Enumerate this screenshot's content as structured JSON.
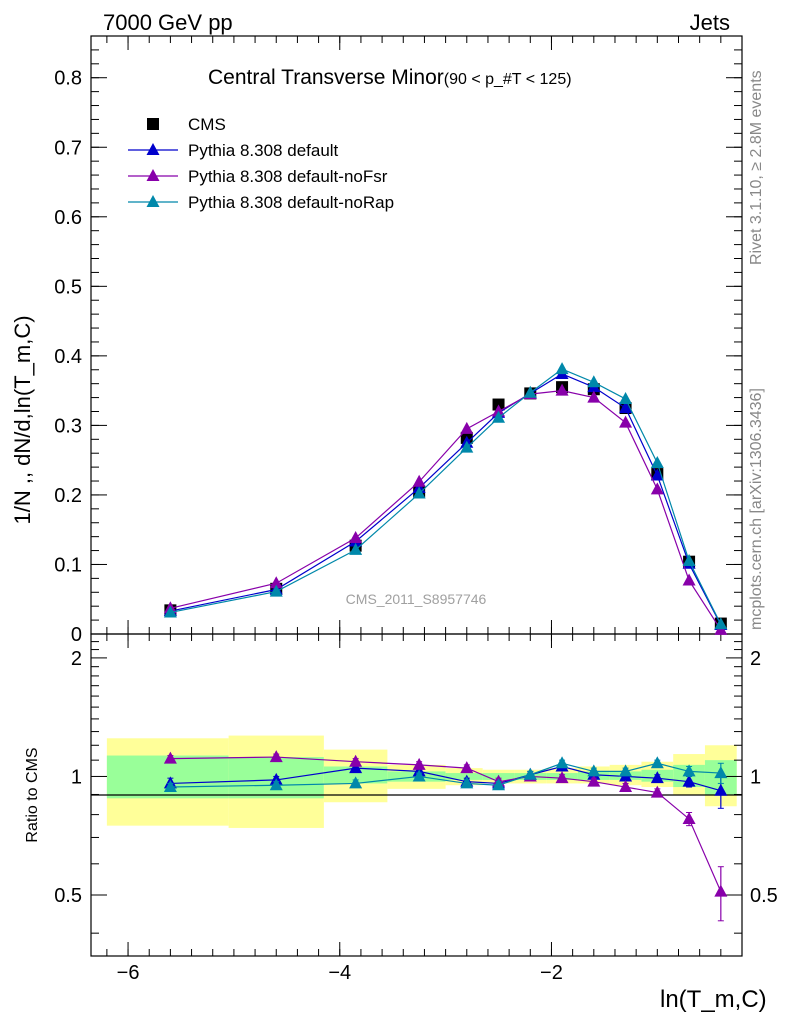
{
  "header": {
    "left": "7000 GeV pp",
    "right": "Jets"
  },
  "side_text": {
    "rivet": "Rivet 3.1.10, ≥ 2.8M events",
    "mcplots": "mcplots.cern.ch [arXiv:1306.3436]"
  },
  "chart_data": {
    "type": "line",
    "title": "Central Transverse Minor",
    "title_cut": "(90 < p_#T < 125)",
    "watermark": "CMS_2011_S8957746",
    "xlabel": "ln(T_m,C)",
    "ylabel": "1/N ,, dN/d,ln(T_m,C)",
    "ratio_ylabel": "Ratio to CMS",
    "xlim": [
      -6.35,
      -0.2
    ],
    "ylim": [
      0,
      0.86
    ],
    "ratio_ylim": [
      0.35,
      2.3
    ],
    "x_ticks": [
      -6,
      -4,
      -2
    ],
    "x_tick_labels": [
      "−6",
      "−4",
      "−2"
    ],
    "y_ticks": [
      0,
      0.1,
      0.2,
      0.3,
      0.4,
      0.5,
      0.6,
      0.7,
      0.8
    ],
    "y_tick_labels": [
      "0",
      "0.1",
      "0.2",
      "0.3",
      "0.4",
      "0.5",
      "0.6",
      "0.7",
      "0.8"
    ],
    "ratio_ticks": [
      0.5,
      1,
      2
    ],
    "ratio_tick_labels": [
      "0.5",
      "1",
      "2"
    ],
    "legend_position": "top-left",
    "x": [
      -5.6,
      -4.6,
      -3.85,
      -3.25,
      -2.8,
      -2.5,
      -2.2,
      -1.9,
      -1.6,
      -1.3,
      -1.0,
      -0.7,
      -0.4
    ],
    "bin_edges": [
      -6.2,
      -5.05,
      -4.15,
      -3.55,
      -3.0,
      -2.65,
      -2.35,
      -2.05,
      -1.75,
      -1.45,
      -1.15,
      -0.85,
      -0.55,
      -0.25
    ],
    "series": [
      {
        "name": "CMS",
        "color": "#000000",
        "marker": "square",
        "values": [
          0.034,
          0.065,
          0.127,
          0.205,
          0.282,
          0.33,
          0.346,
          0.355,
          0.352,
          0.325,
          0.23,
          0.104,
          0.015
        ]
      },
      {
        "name": "Pythia 8.308 default",
        "color": "#0000cc",
        "marker": "triangle",
        "values": [
          0.033,
          0.064,
          0.133,
          0.21,
          0.275,
          0.318,
          0.346,
          0.374,
          0.355,
          0.325,
          0.228,
          0.101,
          0.013
        ]
      },
      {
        "name": "Pythia 8.308 default-noFsr",
        "color": "#8800aa",
        "marker": "triangle",
        "values": [
          0.037,
          0.073,
          0.138,
          0.219,
          0.295,
          0.32,
          0.345,
          0.35,
          0.34,
          0.304,
          0.208,
          0.077,
          0.006
        ]
      },
      {
        "name": "Pythia 8.308 default-noRap",
        "color": "#0088aa",
        "marker": "triangle",
        "values": [
          0.031,
          0.061,
          0.121,
          0.202,
          0.268,
          0.311,
          0.347,
          0.381,
          0.362,
          0.338,
          0.246,
          0.105,
          0.014
        ]
      }
    ],
    "ratio_series": [
      {
        "name": "Pythia 8.308 default",
        "values": [
          0.96,
          0.98,
          1.05,
          1.03,
          0.97,
          0.96,
          1.01,
          1.06,
          1.01,
          1.0,
          0.99,
          0.97,
          0.92
        ],
        "errors": [
          0.03,
          0.02,
          0.02,
          0.02,
          0.02,
          0.02,
          0.02,
          0.02,
          0.02,
          0.02,
          0.02,
          0.03,
          0.09
        ]
      },
      {
        "name": "Pythia 8.308 default-noFsr",
        "values": [
          1.11,
          1.12,
          1.09,
          1.07,
          1.05,
          0.97,
          1.0,
          0.99,
          0.97,
          0.94,
          0.91,
          0.78,
          0.51
        ],
        "errors": [
          0.02,
          0.02,
          0.02,
          0.02,
          0.02,
          0.02,
          0.02,
          0.02,
          0.02,
          0.02,
          0.02,
          0.03,
          0.08
        ]
      },
      {
        "name": "Pythia 8.308 default-noRap",
        "values": [
          0.94,
          0.95,
          0.96,
          1.0,
          0.96,
          0.95,
          1.01,
          1.08,
          1.03,
          1.03,
          1.08,
          1.03,
          1.02
        ],
        "errors": [
          0.02,
          0.02,
          0.02,
          0.02,
          0.02,
          0.02,
          0.02,
          0.02,
          0.02,
          0.02,
          0.02,
          0.03,
          0.06
        ]
      }
    ],
    "uncertainty_bands": {
      "inner_color": "#99ff99",
      "outer_color": "#ffff99",
      "inner": [
        [
          0.88,
          1.13
        ],
        [
          0.88,
          1.12
        ],
        [
          0.96,
          1.06
        ],
        [
          0.97,
          1.03
        ],
        [
          0.98,
          1.02
        ],
        [
          0.98,
          1.02
        ],
        [
          0.98,
          1.02
        ],
        [
          0.98,
          1.02
        ],
        [
          0.98,
          1.03
        ],
        [
          0.98,
          1.03
        ],
        [
          0.97,
          1.04
        ],
        [
          0.94,
          1.07
        ],
        [
          0.9,
          1.1
        ]
      ],
      "outer": [
        [
          0.75,
          1.25
        ],
        [
          0.74,
          1.27
        ],
        [
          0.86,
          1.17
        ],
        [
          0.93,
          1.07
        ],
        [
          0.95,
          1.05
        ],
        [
          0.96,
          1.04
        ],
        [
          0.96,
          1.04
        ],
        [
          0.96,
          1.05
        ],
        [
          0.96,
          1.06
        ],
        [
          0.95,
          1.07
        ],
        [
          0.94,
          1.09
        ],
        [
          0.9,
          1.14
        ],
        [
          0.84,
          1.2
        ]
      ]
    }
  }
}
